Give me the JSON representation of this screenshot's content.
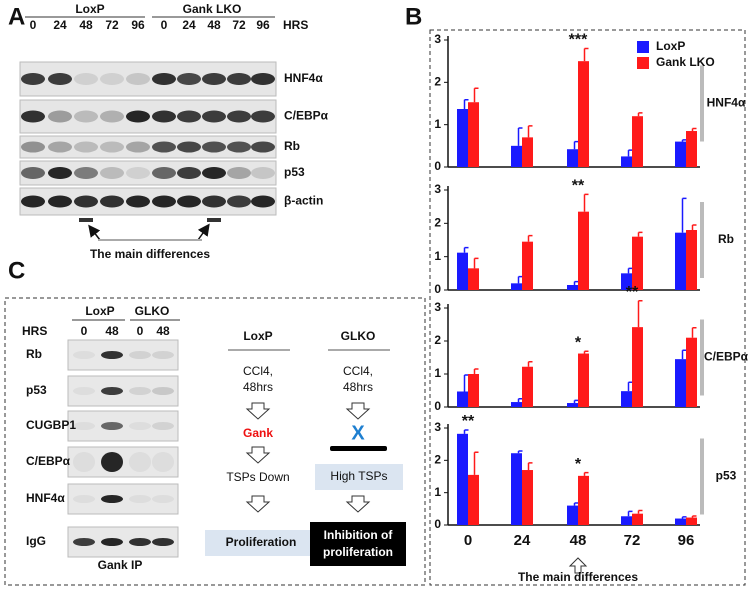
{
  "panel_a": {
    "label": "A",
    "groups": [
      "LoxP",
      "Gank LKO"
    ],
    "time_label": "HRS",
    "times": [
      "0",
      "24",
      "48",
      "72",
      "96",
      "0",
      "24",
      "48",
      "72",
      "96"
    ],
    "rows": [
      "HNF4α",
      "C/EBPα",
      "Rb",
      "p53",
      "β-actin"
    ],
    "note": "The main differences"
  },
  "panel_b": {
    "label": "B",
    "note": "The main differences"
  },
  "chart_data": [
    {
      "type": "bar",
      "title": "HNF4α",
      "ylim": [
        0,
        3
      ],
      "yticks": [
        0,
        1,
        2,
        3
      ],
      "legend": "top-right",
      "series": [
        {
          "name": "LoxP",
          "color": "#1a1aff",
          "values": [
            1.37,
            0.5,
            0.42,
            0.25,
            0.6
          ],
          "errors": [
            0.22,
            0.42,
            0.18,
            0.15,
            0.04
          ]
        },
        {
          "name": "Gank LKO",
          "color": "#ff1a1a",
          "values": [
            1.53,
            0.7,
            2.5,
            1.2,
            0.85
          ],
          "errors": [
            0.33,
            0.27,
            0.3,
            0.08,
            0.06
          ]
        }
      ],
      "annotations": [
        {
          "text": "***",
          "x": "48"
        }
      ]
    },
    {
      "type": "bar",
      "title": "Rb",
      "ylim": [
        0,
        3
      ],
      "yticks": [
        0,
        1,
        2,
        3
      ],
      "series": [
        {
          "color": "#1a1aff",
          "values": [
            1.12,
            0.2,
            0.15,
            0.5,
            1.72
          ],
          "errors": [
            0.15,
            0.2,
            0.1,
            0.15,
            1.03
          ]
        },
        {
          "color": "#ff1a1a",
          "values": [
            0.65,
            1.45,
            2.35,
            1.6,
            1.8
          ],
          "errors": [
            0.3,
            0.18,
            0.52,
            0.13,
            0.15
          ]
        }
      ],
      "annotations": [
        {
          "text": "**",
          "x": "48"
        }
      ]
    },
    {
      "type": "bar",
      "title": "C/EBPα",
      "ylim": [
        0,
        3
      ],
      "yticks": [
        0,
        1,
        2,
        3
      ],
      "series": [
        {
          "color": "#1a1aff",
          "values": [
            0.47,
            0.15,
            0.12,
            0.48,
            1.45
          ],
          "errors": [
            0.5,
            0.1,
            0.08,
            0.27,
            0.27
          ]
        },
        {
          "color": "#ff1a1a",
          "values": [
            1.0,
            1.22,
            1.62,
            2.42,
            2.1
          ],
          "errors": [
            0.15,
            0.15,
            0.07,
            0.8,
            0.3
          ]
        }
      ],
      "annotations": [
        {
          "text": "*",
          "x": "48"
        },
        {
          "text": "**",
          "x": "72"
        }
      ]
    },
    {
      "type": "bar",
      "title": "p53",
      "ylim": [
        0,
        3
      ],
      "yticks": [
        0,
        1,
        2,
        3
      ],
      "categories": [
        "0",
        "24",
        "48",
        "72",
        "96"
      ],
      "series": [
        {
          "color": "#1a1aff",
          "values": [
            2.82,
            2.22,
            0.6,
            0.27,
            0.2
          ],
          "errors": [
            0.12,
            0.07,
            0.08,
            0.15,
            0.05
          ]
        },
        {
          "color": "#ff1a1a",
          "values": [
            1.55,
            1.7,
            1.52,
            0.35,
            0.23
          ],
          "errors": [
            0.7,
            0.22,
            0.1,
            0.1,
            0.05
          ]
        }
      ],
      "annotations": [
        {
          "text": "**",
          "x": "0"
        },
        {
          "text": "*",
          "x": "48"
        }
      ]
    }
  ],
  "panel_c": {
    "label": "C",
    "groups": [
      "LoxP",
      "GLKO"
    ],
    "time_label": "HRS",
    "times": [
      "0",
      "48",
      "0",
      "48"
    ],
    "rows": [
      "Rb",
      "p53",
      "CUGBP1",
      "C/EBPα",
      "HNF4α",
      "IgG"
    ],
    "caption": "Gank IP",
    "flows": [
      {
        "title": "LoxP",
        "steps": [
          "CCl4,",
          "48hrs",
          "Gank",
          "TSPs Down",
          "Proliferation"
        ]
      },
      {
        "title": "GLKO",
        "steps": [
          "CCl4,",
          "48hrs",
          "X",
          "High TSPs",
          "Inhibition of",
          "proliferation"
        ]
      }
    ]
  }
}
